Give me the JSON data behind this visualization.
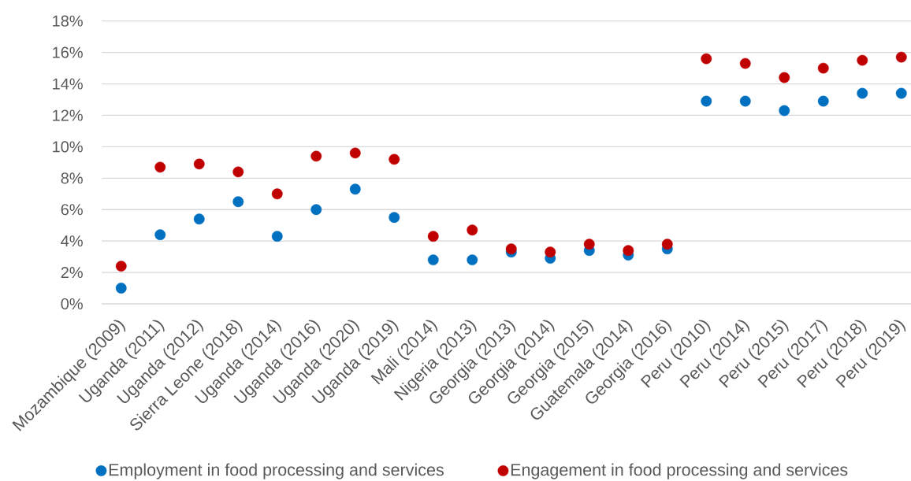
{
  "chart_data": {
    "type": "scatter",
    "categories": [
      "Mozambique (2009)",
      "Uganda (2011)",
      "Uganda (2012)",
      "Sierra Leone (2018)",
      "Uganda (2014)",
      "Uganda (2016)",
      "Uganda (2020)",
      "Uganda (2019)",
      "Mali (2014)",
      "Nigeria (2013)",
      "Georgia (2013)",
      "Georgia (2014)",
      "Georgia (2015)",
      "Guatemala (2014)",
      "Georgia (2016)",
      "Peru (2010)",
      "Peru (2014)",
      "Peru (2015)",
      "Peru (2017)",
      "Peru (2018)",
      "Peru (2019)"
    ],
    "series": [
      {
        "name": "Employment in food processing and services",
        "color": "#0070c0",
        "values": [
          1.0,
          4.4,
          5.4,
          6.5,
          4.3,
          6.0,
          7.3,
          5.5,
          2.8,
          2.8,
          3.3,
          2.9,
          3.4,
          3.1,
          3.5,
          12.9,
          12.9,
          12.3,
          12.9,
          13.4,
          13.4
        ]
      },
      {
        "name": "Engagement in food processing and services",
        "color": "#c00000",
        "values": [
          2.4,
          8.7,
          8.9,
          8.4,
          7.0,
          9.4,
          9.6,
          9.2,
          4.3,
          4.7,
          3.5,
          3.3,
          3.8,
          3.4,
          3.8,
          15.6,
          15.3,
          14.4,
          15.0,
          15.5,
          15.7
        ]
      }
    ],
    "ylim": [
      0,
      18
    ],
    "yticks": [
      {
        "value": 0,
        "label": "0%"
      },
      {
        "value": 2,
        "label": "2%"
      },
      {
        "value": 4,
        "label": "4%"
      },
      {
        "value": 6,
        "label": "6%"
      },
      {
        "value": 8,
        "label": "8%"
      },
      {
        "value": 10,
        "label": "10%"
      },
      {
        "value": 12,
        "label": "12%"
      },
      {
        "value": 14,
        "label": "14%"
      },
      {
        "value": 16,
        "label": "16%"
      },
      {
        "value": 18,
        "label": "18%"
      }
    ],
    "grid": "y",
    "legend": "bottom",
    "marker": "circle"
  }
}
